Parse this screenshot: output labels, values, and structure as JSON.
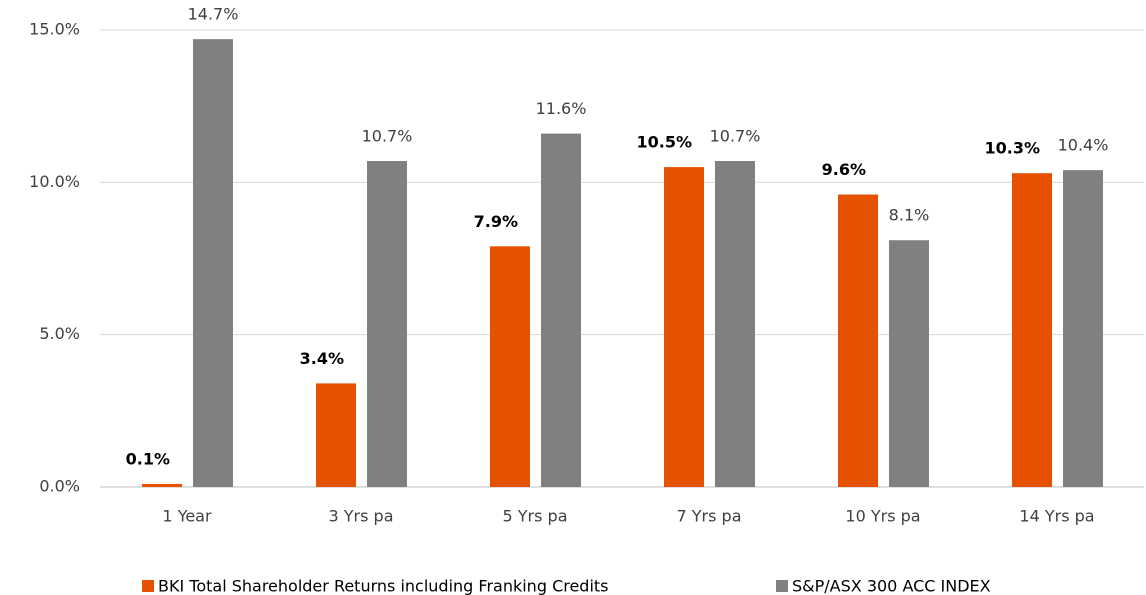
{
  "chart_data": {
    "type": "bar",
    "categories": [
      "1 Year",
      "3 Yrs pa",
      "5 Yrs pa",
      "7 Yrs pa",
      "10 Yrs pa",
      "14 Yrs pa"
    ],
    "series": [
      {
        "name": "BKI Total Shareholder Returns including Franking Credits",
        "color": "#e65100",
        "values": [
          0.1,
          3.4,
          7.9,
          10.5,
          9.6,
          10.3
        ],
        "value_labels": [
          "0.1%",
          "3.4%",
          "7.9%",
          "10.5%",
          "9.6%",
          "10.3%"
        ]
      },
      {
        "name": "S&P/ASX 300 ACC INDEX",
        "color": "#808080",
        "values": [
          14.7,
          10.7,
          11.6,
          10.7,
          8.1,
          10.4
        ],
        "value_labels": [
          "14.7%",
          "10.7%",
          "11.6%",
          "10.7%",
          "8.1%",
          "10.4%"
        ]
      }
    ],
    "ylim": [
      0,
      15
    ],
    "yticks": [
      {
        "value": 0,
        "label": "0.0%"
      },
      {
        "value": 5,
        "label": "5.0%"
      },
      {
        "value": 10,
        "label": "10.0%"
      },
      {
        "value": 15,
        "label": "15.0%"
      }
    ],
    "grid": true,
    "legend": "bottom"
  }
}
